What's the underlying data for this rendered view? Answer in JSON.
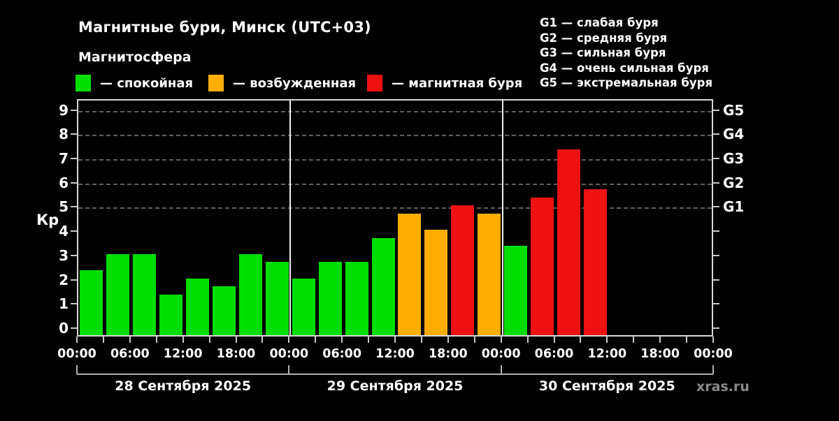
{
  "header": {
    "title": "Магнитные бури, Минск (UTC+03)",
    "subtitle": "Магнитосфера",
    "legend": [
      {
        "key": "quiet",
        "label": "— спокойная",
        "color": "#00dd00"
      },
      {
        "key": "excited",
        "label": "— возбужденная",
        "color": "#ffae00"
      },
      {
        "key": "storm",
        "label": "— магнитная буря",
        "color": "#ee1111"
      }
    ],
    "storm_scale": [
      "G1 — слабая буря",
      "G2 — средняя буря",
      "G3 — сильная буря",
      "G4 — очень сильная буря",
      "G5 — экстремальная буря"
    ]
  },
  "chart_data": {
    "type": "bar",
    "title": "Магнитные бури, Минск (UTC+03)",
    "ylabel": "Кр",
    "ylim": [
      0,
      9
    ],
    "yticks": [
      0,
      1,
      2,
      3,
      4,
      5,
      6,
      7,
      8,
      9
    ],
    "grid_levels": [
      5,
      6,
      7,
      8,
      9
    ],
    "right_axis": [
      {
        "label": "G1",
        "value": 5
      },
      {
        "label": "G2",
        "value": 6
      },
      {
        "label": "G3",
        "value": 7
      },
      {
        "label": "G4",
        "value": 8
      },
      {
        "label": "G5",
        "value": 9
      }
    ],
    "bar_interval_hours": 3,
    "time_ticks": [
      "00:00",
      "06:00",
      "12:00",
      "18:00"
    ],
    "end_time_label": "00:00",
    "colors": {
      "quiet": "#00dd00",
      "excited": "#ffae00",
      "storm": "#ee1111"
    },
    "days": [
      {
        "date": "28 Сентября 2025",
        "values": [
          2.33,
          3.0,
          3.0,
          1.33,
          2.0,
          1.67,
          3.0,
          2.67
        ],
        "statuses": [
          "quiet",
          "quiet",
          "quiet",
          "quiet",
          "quiet",
          "quiet",
          "quiet",
          "quiet"
        ]
      },
      {
        "date": "29 Сентября 2025",
        "values": [
          2.0,
          2.67,
          2.67,
          3.67,
          4.67,
          4.0,
          5.0,
          4.67
        ],
        "statuses": [
          "quiet",
          "quiet",
          "quiet",
          "quiet",
          "excited",
          "excited",
          "storm",
          "excited"
        ]
      },
      {
        "date": "30 Сентября 2025",
        "values": [
          3.33,
          5.33,
          7.33,
          5.67
        ],
        "statuses": [
          "quiet",
          "storm",
          "storm",
          "storm"
        ]
      }
    ]
  },
  "watermark": "xras.ru"
}
